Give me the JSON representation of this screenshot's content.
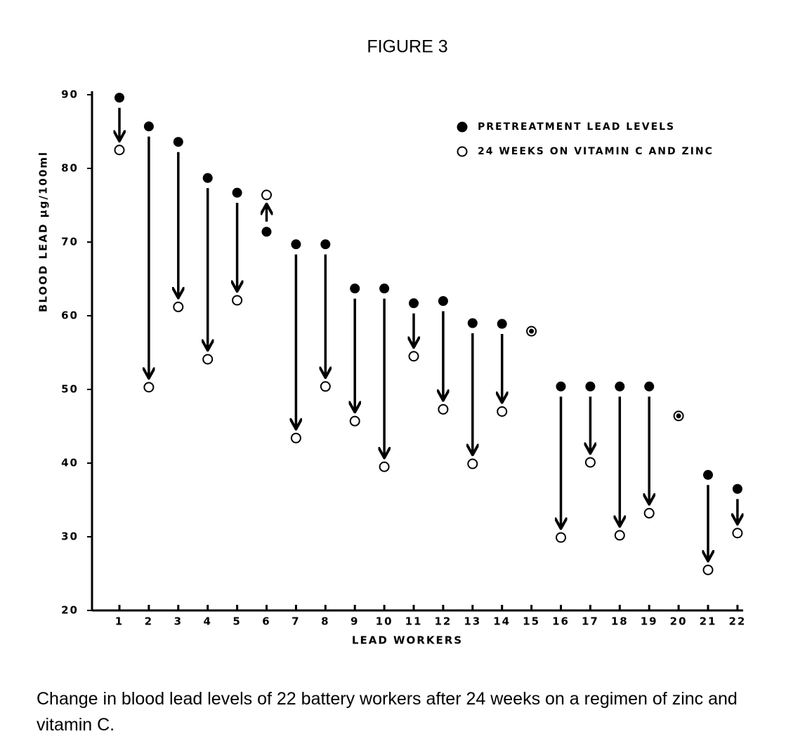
{
  "chart_data": {
    "type": "arrow",
    "title": "FIGURE 3",
    "x_label": "LEAD WORKERS",
    "y_label": "BLOOD LEAD µg/100ml",
    "categories": [
      "1",
      "2",
      "3",
      "4",
      "5",
      "6",
      "7",
      "8",
      "9",
      "10",
      "11",
      "12",
      "13",
      "14",
      "15",
      "16",
      "17",
      "18",
      "19",
      "20",
      "21",
      "22"
    ],
    "series": [
      {
        "name": "PRETREATMENT LEAD LEVELS",
        "color": "#000000",
        "marker": "filled",
        "values": [
          89.6,
          85.7,
          83.6,
          78.7,
          76.7,
          71.4,
          69.7,
          69.7,
          63.7,
          63.7,
          61.7,
          62,
          59,
          58.9,
          57.9,
          50.4,
          50.4,
          50.4,
          50.4,
          46.4,
          38.4,
          36.5
        ]
      },
      {
        "name": "24 WEEKS ON VITAMIN C AND ZINC",
        "color": "#000000",
        "marker": "open",
        "values": [
          82.5,
          50.3,
          61.2,
          54.1,
          62.1,
          76.4,
          43.4,
          50.4,
          45.7,
          39.5,
          54.5,
          47.3,
          39.9,
          47,
          57.9,
          29.9,
          40.1,
          30.2,
          33.2,
          46.4,
          25.5,
          30.5
        ]
      }
    ],
    "ylim": [
      20,
      90
    ],
    "yticks": [
      20,
      30,
      40,
      50,
      60,
      70,
      80,
      90
    ],
    "grid": false,
    "legend": "top-right",
    "caption": "Change in blood lead levels of 22 battery workers after 24 weeks on a regimen of zinc and vitamin C."
  }
}
